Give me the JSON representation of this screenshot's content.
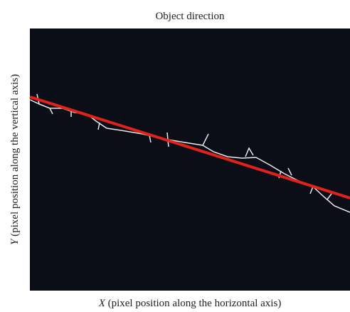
{
  "figure": {
    "title": "Object direction",
    "x_label": {
      "symbol": "X",
      "text": "(pixel position along the horizontal axis)"
    },
    "y_label": {
      "symbol": "Y",
      "text": "(pixel position along the vertical axis)"
    }
  }
}
